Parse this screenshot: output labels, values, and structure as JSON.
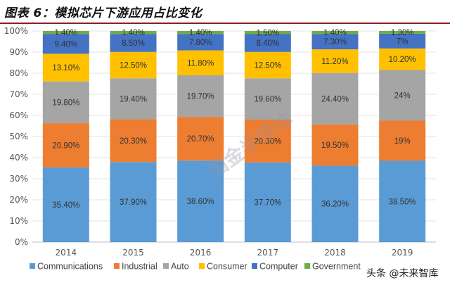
{
  "title": "图表 6：模拟芯片下游应用占比变化",
  "watermark": "国金半导体",
  "credit": "头条 @未来智库",
  "chart_data": {
    "type": "bar",
    "stacked": true,
    "categories": [
      "2014",
      "2015",
      "2016",
      "2017",
      "2018",
      "2019"
    ],
    "ylim": [
      0,
      100
    ],
    "yticks": [
      "0%",
      "10%",
      "20%",
      "30%",
      "40%",
      "50%",
      "60%",
      "70%",
      "80%",
      "90%",
      "100%"
    ],
    "legend_position": "bottom",
    "series": [
      {
        "name": "Communications",
        "color": "#5b9bd5",
        "values": [
          35.4,
          37.9,
          38.6,
          37.7,
          36.2,
          38.5
        ],
        "labels": [
          "35.40%",
          "37.90%",
          "38.60%",
          "37.70%",
          "36.20%",
          "38.50%"
        ]
      },
      {
        "name": "Industrial",
        "color": "#ed7d31",
        "values": [
          20.9,
          20.3,
          20.7,
          20.3,
          19.5,
          19
        ],
        "labels": [
          "20.90%",
          "20.30%",
          "20.70%",
          "20.30%",
          "19.50%",
          "19%"
        ]
      },
      {
        "name": "Auto",
        "color": "#a5a5a5",
        "values": [
          19.8,
          19.4,
          19.7,
          19.6,
          24.4,
          24
        ],
        "labels": [
          "19.80%",
          "19.40%",
          "19.70%",
          "19.60%",
          "24.40%",
          "24%"
        ]
      },
      {
        "name": "Consumer",
        "color": "#ffc000",
        "values": [
          13.1,
          12.5,
          11.8,
          12.5,
          11.2,
          10.2
        ],
        "labels": [
          "13.10%",
          "12.50%",
          "11.80%",
          "12.50%",
          "11.20%",
          "10.20%"
        ]
      },
      {
        "name": "Computer",
        "color": "#4472c4",
        "values": [
          9.4,
          8.5,
          7.8,
          8.4,
          7.3,
          7
        ],
        "labels": [
          "9.40%",
          "8.50%",
          "7.80%",
          "8.40%",
          "7.30%",
          "7%"
        ]
      },
      {
        "name": "Government",
        "color": "#70ad47",
        "values": [
          1.4,
          1.4,
          1.4,
          1.5,
          1.4,
          1.3
        ],
        "labels": [
          "1.40%",
          "1.40%",
          "1.40%",
          "1.50%",
          "1.40%",
          "1.30%"
        ]
      }
    ]
  }
}
